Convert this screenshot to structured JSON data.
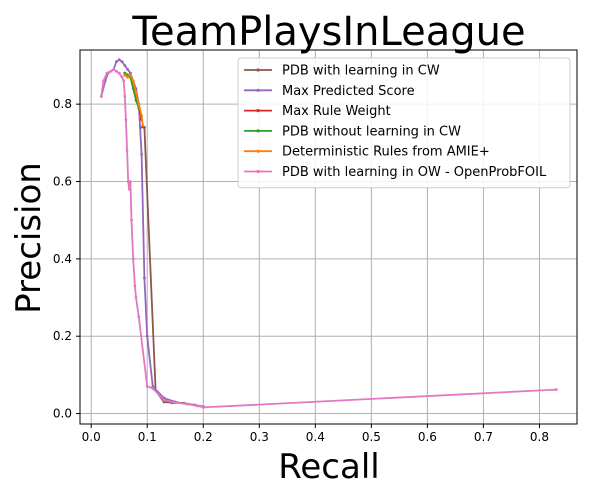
{
  "chart_data": {
    "type": "line",
    "title": "TeamPlaysInLeague",
    "xlabel": "Recall",
    "ylabel": "Precision",
    "xlim": [
      -0.02,
      0.867
    ],
    "ylim": [
      -0.027,
      0.94
    ],
    "xticks": [
      "0.0",
      "0.1",
      "0.2",
      "0.3",
      "0.4",
      "0.5",
      "0.6",
      "0.7",
      "0.8"
    ],
    "xtick_values": [
      0.0,
      0.1,
      0.2,
      0.3,
      0.4,
      0.5,
      0.6,
      0.7,
      0.8
    ],
    "yticks": [
      "0.0",
      "0.2",
      "0.4",
      "0.6",
      "0.8"
    ],
    "ytick_values": [
      0.0,
      0.2,
      0.4,
      0.6,
      0.8
    ],
    "grid": true,
    "legend_position": "top-right",
    "series": [
      {
        "name": "PDB with learning in CW",
        "color": "#8c564b",
        "x": [
          0.088,
          0.095,
          0.115,
          0.13,
          0.145,
          0.165,
          0.185,
          0.2
        ],
        "y": [
          0.74,
          0.74,
          0.06,
          0.03,
          0.028,
          0.027,
          0.022,
          0.018
        ]
      },
      {
        "name": "Max Predicted Score",
        "color": "#9467bd",
        "x": [
          0.018,
          0.025,
          0.03,
          0.04,
          0.045,
          0.05,
          0.055,
          0.06,
          0.065,
          0.07,
          0.075,
          0.08,
          0.085,
          0.09,
          0.095,
          0.1,
          0.11,
          0.13,
          0.15,
          0.17,
          0.19,
          0.2
        ],
        "y": [
          0.82,
          0.86,
          0.88,
          0.89,
          0.91,
          0.915,
          0.91,
          0.9,
          0.89,
          0.88,
          0.86,
          0.84,
          0.8,
          0.67,
          0.35,
          0.2,
          0.07,
          0.04,
          0.03,
          0.025,
          0.02,
          0.018
        ]
      },
      {
        "name": "Max Rule Weight",
        "color": "#d62728",
        "x": [
          0.06,
          0.065,
          0.07,
          0.075,
          0.08,
          0.085,
          0.09
        ],
        "y": [
          0.88,
          0.875,
          0.87,
          0.85,
          0.82,
          0.79,
          0.76
        ]
      },
      {
        "name": "PDB without learning in CW",
        "color": "#2ca02c",
        "x": [
          0.06,
          0.065,
          0.07,
          0.075,
          0.08,
          0.085
        ],
        "y": [
          0.88,
          0.875,
          0.87,
          0.84,
          0.81,
          0.79
        ]
      },
      {
        "name": "Deterministic Rules from AMIE+",
        "color": "#ff7f0e",
        "x": [
          0.06,
          0.065,
          0.07,
          0.075,
          0.08,
          0.085,
          0.09,
          0.092
        ],
        "y": [
          0.875,
          0.87,
          0.875,
          0.86,
          0.83,
          0.8,
          0.77,
          0.745
        ]
      },
      {
        "name": "PDB with learning in OW - OpenProbFOIL",
        "color": "#e377c2",
        "x": [
          0.018,
          0.022,
          0.028,
          0.035,
          0.04,
          0.045,
          0.05,
          0.055,
          0.058,
          0.06,
          0.062,
          0.064,
          0.066,
          0.068,
          0.07,
          0.072,
          0.075,
          0.078,
          0.08,
          0.085,
          0.1,
          0.11,
          0.13,
          0.15,
          0.17,
          0.19,
          0.2,
          0.83
        ],
        "y": [
          0.82,
          0.86,
          0.88,
          0.885,
          0.89,
          0.885,
          0.88,
          0.87,
          0.86,
          0.82,
          0.76,
          0.68,
          0.6,
          0.58,
          0.6,
          0.5,
          0.4,
          0.33,
          0.3,
          0.25,
          0.07,
          0.065,
          0.035,
          0.028,
          0.025,
          0.02,
          0.016,
          0.062
        ]
      }
    ]
  }
}
